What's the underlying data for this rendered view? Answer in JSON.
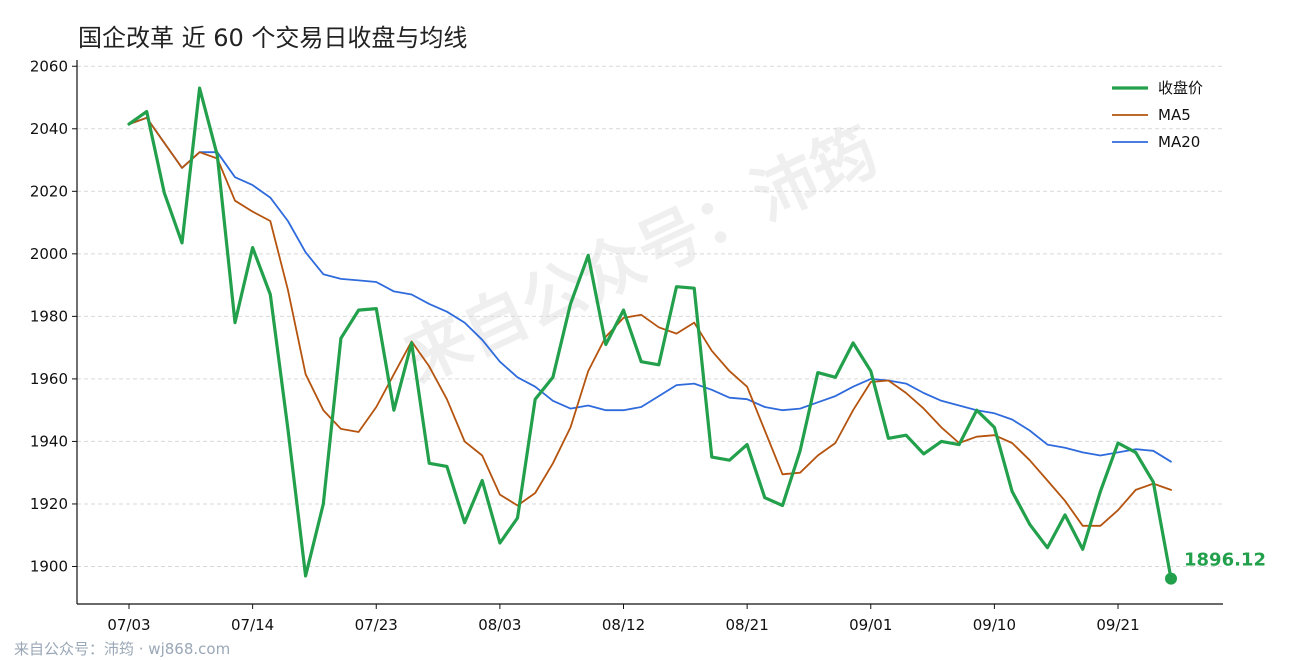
{
  "title": "国企改革 近 60 个交易日收盘与均线",
  "footer": "来自公众号：沛筠 · wj868.com",
  "watermark": "来自公众号：沛筠",
  "colors": {
    "close": "#22a04b",
    "ma5": "#b5540f",
    "ma20": "#2f6bdc",
    "grid": "#d9d9d9",
    "axis": "#111111"
  },
  "chart_data": {
    "type": "line",
    "title": "国企改革 近 60 个交易日收盘与均线",
    "xlabel": "",
    "ylabel": "",
    "ylim": [
      1888,
      2062
    ],
    "yticks": [
      1900,
      1920,
      1940,
      1960,
      1980,
      2000,
      2020,
      2040,
      2060
    ],
    "xtick_labels": [
      "07/03",
      "07/14",
      "07/23",
      "08/03",
      "08/12",
      "08/21",
      "09/01",
      "09/10",
      "09/21"
    ],
    "xtick_index": [
      0,
      7,
      14,
      21,
      28,
      35,
      42,
      49,
      56
    ],
    "grid": "horizontal dashed",
    "legend_position": "top-right",
    "last_value_label": "1896.12",
    "series": [
      {
        "name": "收盘价",
        "values": [
          2041.5,
          2045.5,
          2019.5,
          2003.5,
          2053.0,
          2031.5,
          1978.0,
          2002.0,
          1987.0,
          1944.0,
          1897.0,
          1920.0,
          1973.0,
          1982.0,
          1982.5,
          1950.0,
          1971.5,
          1933.0,
          1932.0,
          1914.0,
          1927.5,
          1907.5,
          1915.5,
          1953.5,
          1960.5,
          1984.0,
          1999.5,
          1971.0,
          1982.0,
          1965.5,
          1964.5,
          1989.5,
          1989.0,
          1935.0,
          1934.0,
          1939.0,
          1922.0,
          1919.5,
          1937.0,
          1962.0,
          1960.5,
          1971.5,
          1962.5,
          1941.0,
          1942.0,
          1936.0,
          1940.0,
          1939.0,
          1950.0,
          1944.5,
          1924.0,
          1913.5,
          1906.0,
          1916.5,
          1905.5,
          1924.0,
          1939.5,
          1936.5,
          1927.0,
          1896.12
        ]
      },
      {
        "name": "MA5",
        "values": [
          2041.5,
          2043.5,
          2035.5,
          2027.5,
          2032.5,
          2030.5,
          2017.0,
          2013.5,
          2010.5,
          1988.5,
          1961.5,
          1950.0,
          1944.0,
          1943.0,
          1951.0,
          1961.5,
          1972.0,
          1964.0,
          1953.5,
          1940.0,
          1935.5,
          1923.0,
          1919.5,
          1923.5,
          1933.0,
          1944.5,
          1962.5,
          1973.5,
          1979.5,
          1980.5,
          1976.5,
          1974.5,
          1978.0,
          1969.0,
          1962.5,
          1957.5,
          1943.5,
          1929.5,
          1930.0,
          1935.5,
          1939.5,
          1950.0,
          1959.0,
          1959.5,
          1955.5,
          1950.5,
          1944.5,
          1939.5,
          1941.5,
          1942.0,
          1939.5,
          1934.0,
          1927.5,
          1921.0,
          1913.0,
          1913.0,
          1918.0,
          1924.5,
          1926.5,
          1924.5
        ]
      },
      {
        "name": "MA20",
        "values": [
          2041.5,
          2043.5,
          2035.5,
          2027.5,
          2032.5,
          2032.5,
          2024.5,
          2022.0,
          2018.0,
          2010.5,
          2000.5,
          1993.5,
          1992.0,
          1991.5,
          1991.0,
          1988.0,
          1987.0,
          1984.0,
          1981.5,
          1978.0,
          1972.5,
          1965.5,
          1960.5,
          1957.5,
          1953.0,
          1950.5,
          1951.5,
          1950.0,
          1950.0,
          1951.0,
          1954.5,
          1958.0,
          1958.5,
          1956.5,
          1954.0,
          1953.5,
          1951.0,
          1950.0,
          1950.5,
          1952.5,
          1954.5,
          1957.5,
          1960.0,
          1959.5,
          1958.5,
          1955.5,
          1953.0,
          1951.5,
          1950.0,
          1949.0,
          1947.0,
          1943.5,
          1939.0,
          1938.0,
          1936.5,
          1935.5,
          1936.5,
          1937.5,
          1937.0,
          1933.5
        ]
      }
    ]
  }
}
